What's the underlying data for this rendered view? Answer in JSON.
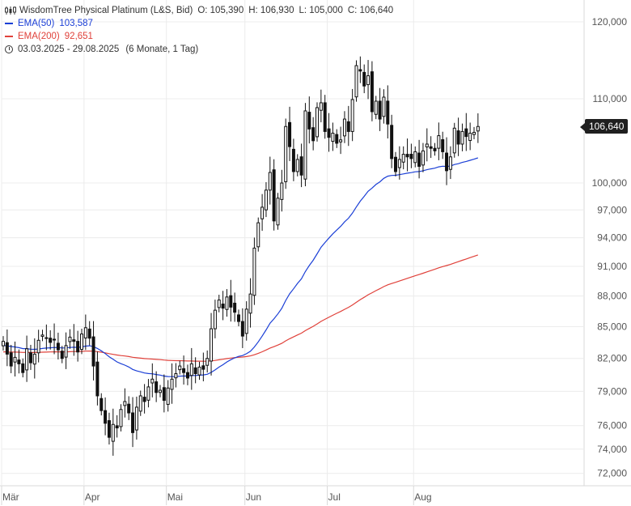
{
  "legend": {
    "instrument": "WisdomTree Physical Platinum (L&S, Bid)",
    "ohlc": {
      "open": "O: 105,390",
      "high": "H: 106,930",
      "low": "L: 105,000",
      "close": "C: 106,640"
    },
    "ema50": {
      "label": "EMA(50)",
      "value": "103,587",
      "color": "#1b3fd6"
    },
    "ema200": {
      "label": "EMA(200)",
      "value": "92,651",
      "color": "#e0413a"
    },
    "range": "03.03.2025 - 29.08.2025",
    "period": "(6 Monate, 1 Tag)"
  },
  "last_price_label": "106,640",
  "chart_data": {
    "type": "candlestick",
    "y_scale": "log",
    "ylim": [
      71,
      123
    ],
    "y_ticks": [
      "72,000",
      "74,000",
      "76,000",
      "79,000",
      "82,000",
      "85,000",
      "88,000",
      "91,000",
      "94,000",
      "97,000",
      "100,000",
      "110,000",
      "120,000"
    ],
    "x_ticks": [
      "Mär",
      "Apr",
      "Mai",
      "Jun",
      "Jul",
      "Aug"
    ],
    "grid": true,
    "close": [
      83.6,
      82.4,
      81.3,
      82.1,
      81.5,
      80.7,
      82.9,
      81.6,
      82.4,
      83.7,
      84.2,
      83.9,
      83.5,
      83.8,
      82.8,
      82.0,
      83.2,
      84.0,
      83.6,
      82.6,
      84.3,
      84.9,
      83.9,
      81.3,
      78.6,
      77.3,
      76.2,
      75.0,
      76.1,
      75.8,
      77.4,
      78.1,
      77.1,
      75.4,
      77.6,
      78.6,
      78.1,
      79.4,
      80.1,
      78.9,
      79.1,
      78.2,
      79.3,
      80.1,
      80.6,
      81.3,
      80.7,
      80.2,
      81.5,
      80.6,
      81.2,
      81.0,
      82.0,
      84.8,
      86.6,
      87.6,
      86.8,
      87.9,
      86.9,
      86.4,
      85.5,
      84.1,
      86.7,
      88.2,
      92.9,
      95.6,
      97.3,
      99.2,
      101.2,
      95.8,
      98.3,
      100.0,
      106.6,
      104.2,
      101.3,
      102.7,
      100.9,
      108.5,
      106.3,
      104.9,
      108.9,
      109.5,
      106.0,
      105.3,
      105.8,
      104.6,
      105.0,
      107.5,
      106.0,
      109.9,
      114.2,
      113.5,
      111.6,
      112.9,
      108.4,
      109.7,
      107.5,
      110.2,
      106.9,
      102.8,
      101.3,
      102.7,
      103.3,
      103.0,
      102.8,
      103.6,
      101.9,
      103.7,
      104.5,
      104.0,
      103.7,
      105.5,
      103.6,
      101.4,
      103.0,
      106.4,
      104.5,
      106.0,
      105.4,
      105.8,
      105.9,
      106.6
    ],
    "series": [
      {
        "name": "EMA(50)",
        "last": 103.587
      },
      {
        "name": "EMA(200)",
        "last": 92.651
      }
    ]
  }
}
